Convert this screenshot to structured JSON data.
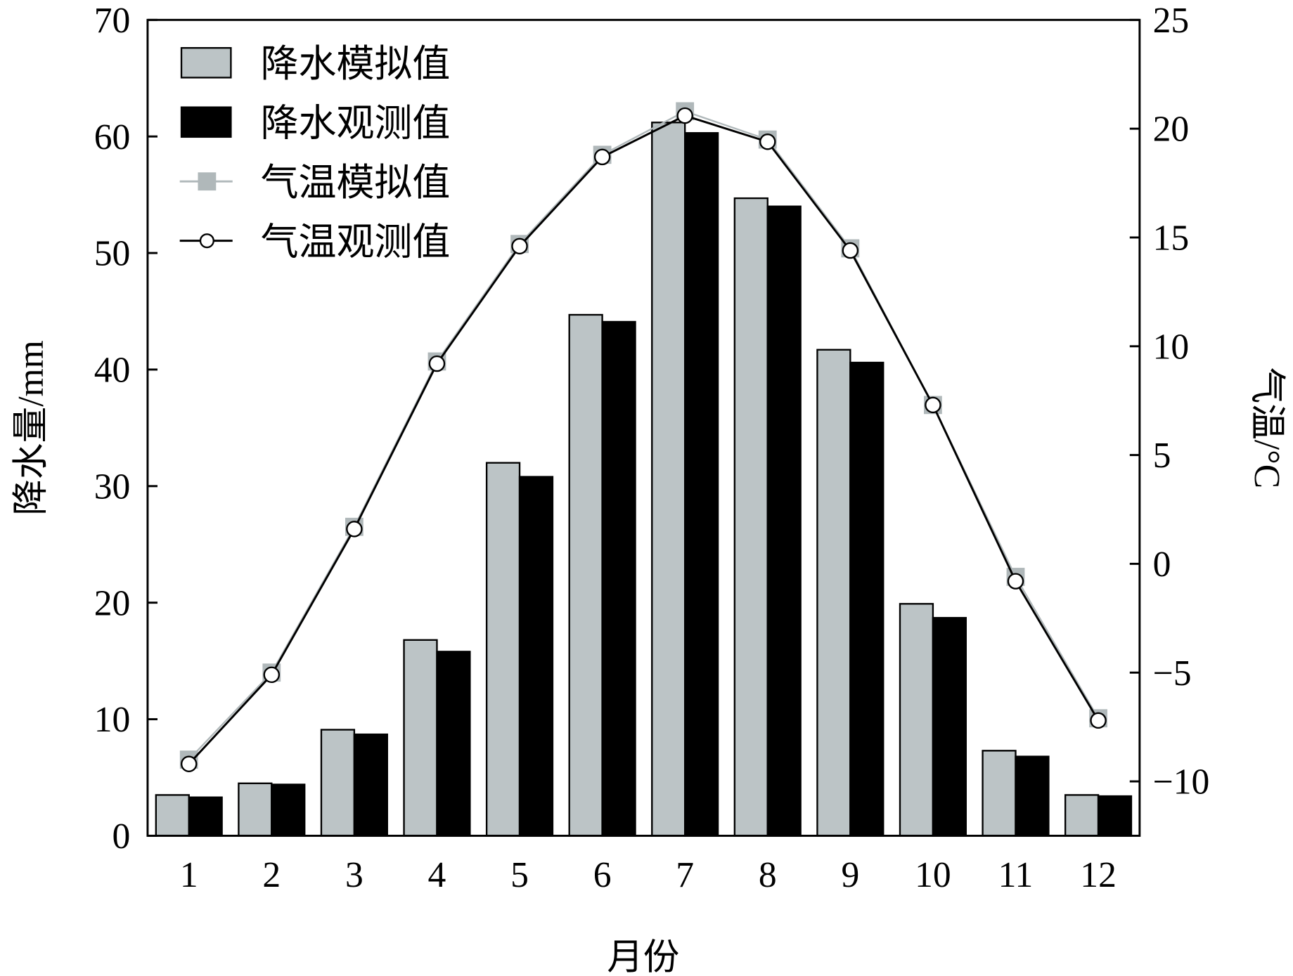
{
  "chart_data": {
    "type": "bar+line",
    "xlabel": "月份",
    "ylabel_left": "降水量/mm",
    "ylabel_right": "气温/°C",
    "categories": [
      "1",
      "2",
      "3",
      "4",
      "5",
      "6",
      "7",
      "8",
      "9",
      "10",
      "11",
      "12"
    ],
    "ylim_left": [
      0,
      70
    ],
    "yticks_left": [
      "0",
      "10",
      "20",
      "30",
      "40",
      "50",
      "60",
      "70"
    ],
    "ylim_right": [
      -12.5,
      25
    ],
    "yticks_right": [
      {
        "v": -10,
        "label": "−10"
      },
      {
        "v": -5,
        "label": "−5"
      },
      {
        "v": 0,
        "label": "0"
      },
      {
        "v": 5,
        "label": "5"
      },
      {
        "v": 10,
        "label": "10"
      },
      {
        "v": 15,
        "label": "15"
      },
      {
        "v": 20,
        "label": "20"
      },
      {
        "v": 25,
        "label": "25"
      }
    ],
    "series": [
      {
        "name": "降水模拟值",
        "type": "bar",
        "axis": "left",
        "color": "#bcc4c6",
        "values": [
          3.5,
          4.5,
          9.1,
          16.8,
          32.0,
          44.7,
          61.2,
          54.7,
          41.7,
          19.9,
          7.3,
          3.5
        ]
      },
      {
        "name": "降水观测值",
        "type": "bar",
        "axis": "left",
        "color": "#000000",
        "values": [
          3.3,
          4.4,
          8.7,
          15.8,
          30.8,
          44.1,
          60.3,
          54.0,
          40.6,
          18.7,
          6.8,
          3.4
        ]
      },
      {
        "name": "气温模拟值",
        "type": "line",
        "axis": "right",
        "color": "#b0b8ba",
        "marker": "square",
        "values": [
          -9.0,
          -5.0,
          1.7,
          9.3,
          14.7,
          18.8,
          20.8,
          19.5,
          14.5,
          7.3,
          -0.6,
          -7.1
        ]
      },
      {
        "name": "气温观测值",
        "type": "line",
        "axis": "right",
        "color": "#000000",
        "marker": "circle",
        "values": [
          -9.2,
          -5.1,
          1.6,
          9.2,
          14.6,
          18.7,
          20.6,
          19.4,
          14.4,
          7.3,
          -0.8,
          -7.2
        ]
      }
    ],
    "legend_position": "top-left",
    "grid": false
  }
}
